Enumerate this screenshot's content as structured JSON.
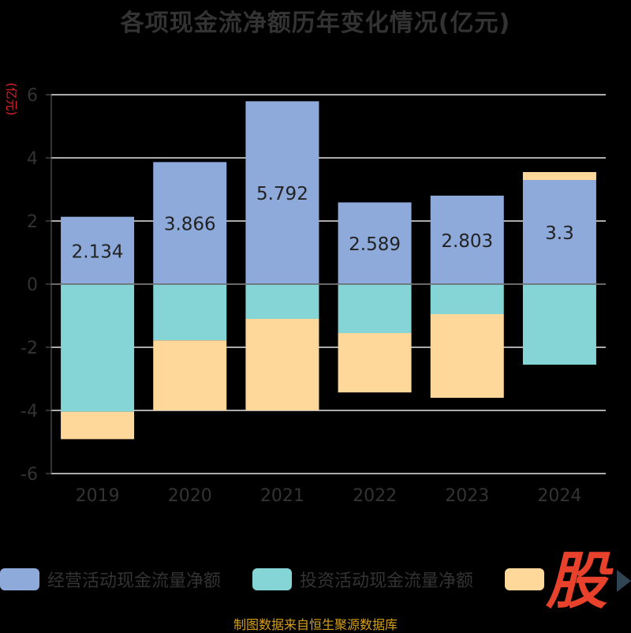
{
  "chart_data": {
    "type": "bar",
    "stacked": true,
    "title": "各项现金流净额历年变化情况(亿元)",
    "ylabel": "(亿元)",
    "categories": [
      "2019",
      "2020",
      "2021",
      "2022",
      "2023",
      "2024"
    ],
    "ylim": [
      -6,
      6
    ],
    "yticks": [
      6,
      4,
      2,
      0,
      -2,
      -4,
      -6
    ],
    "grid": true,
    "legend_position": "bottom",
    "series": [
      {
        "name": "经营活动现金流量净额",
        "color": "#8eaadb",
        "values": [
          2.134,
          3.866,
          5.792,
          2.589,
          2.803,
          3.3
        ],
        "labels": [
          "2.134",
          "3.866",
          "5.792",
          "2.589",
          "2.803",
          "3.3"
        ]
      },
      {
        "name": "投资活动现金流量净额",
        "color": "#85d4d6",
        "values": [
          -4.04,
          -1.78,
          -1.1,
          -1.55,
          -0.95,
          -2.55
        ]
      },
      {
        "name": "",
        "color": "#fdd89a",
        "values": [
          -0.87,
          -2.22,
          -2.9,
          -1.88,
          -2.65,
          0.25
        ]
      }
    ]
  },
  "source": "制图数据来自恒生聚源数据库",
  "watermark": "股"
}
